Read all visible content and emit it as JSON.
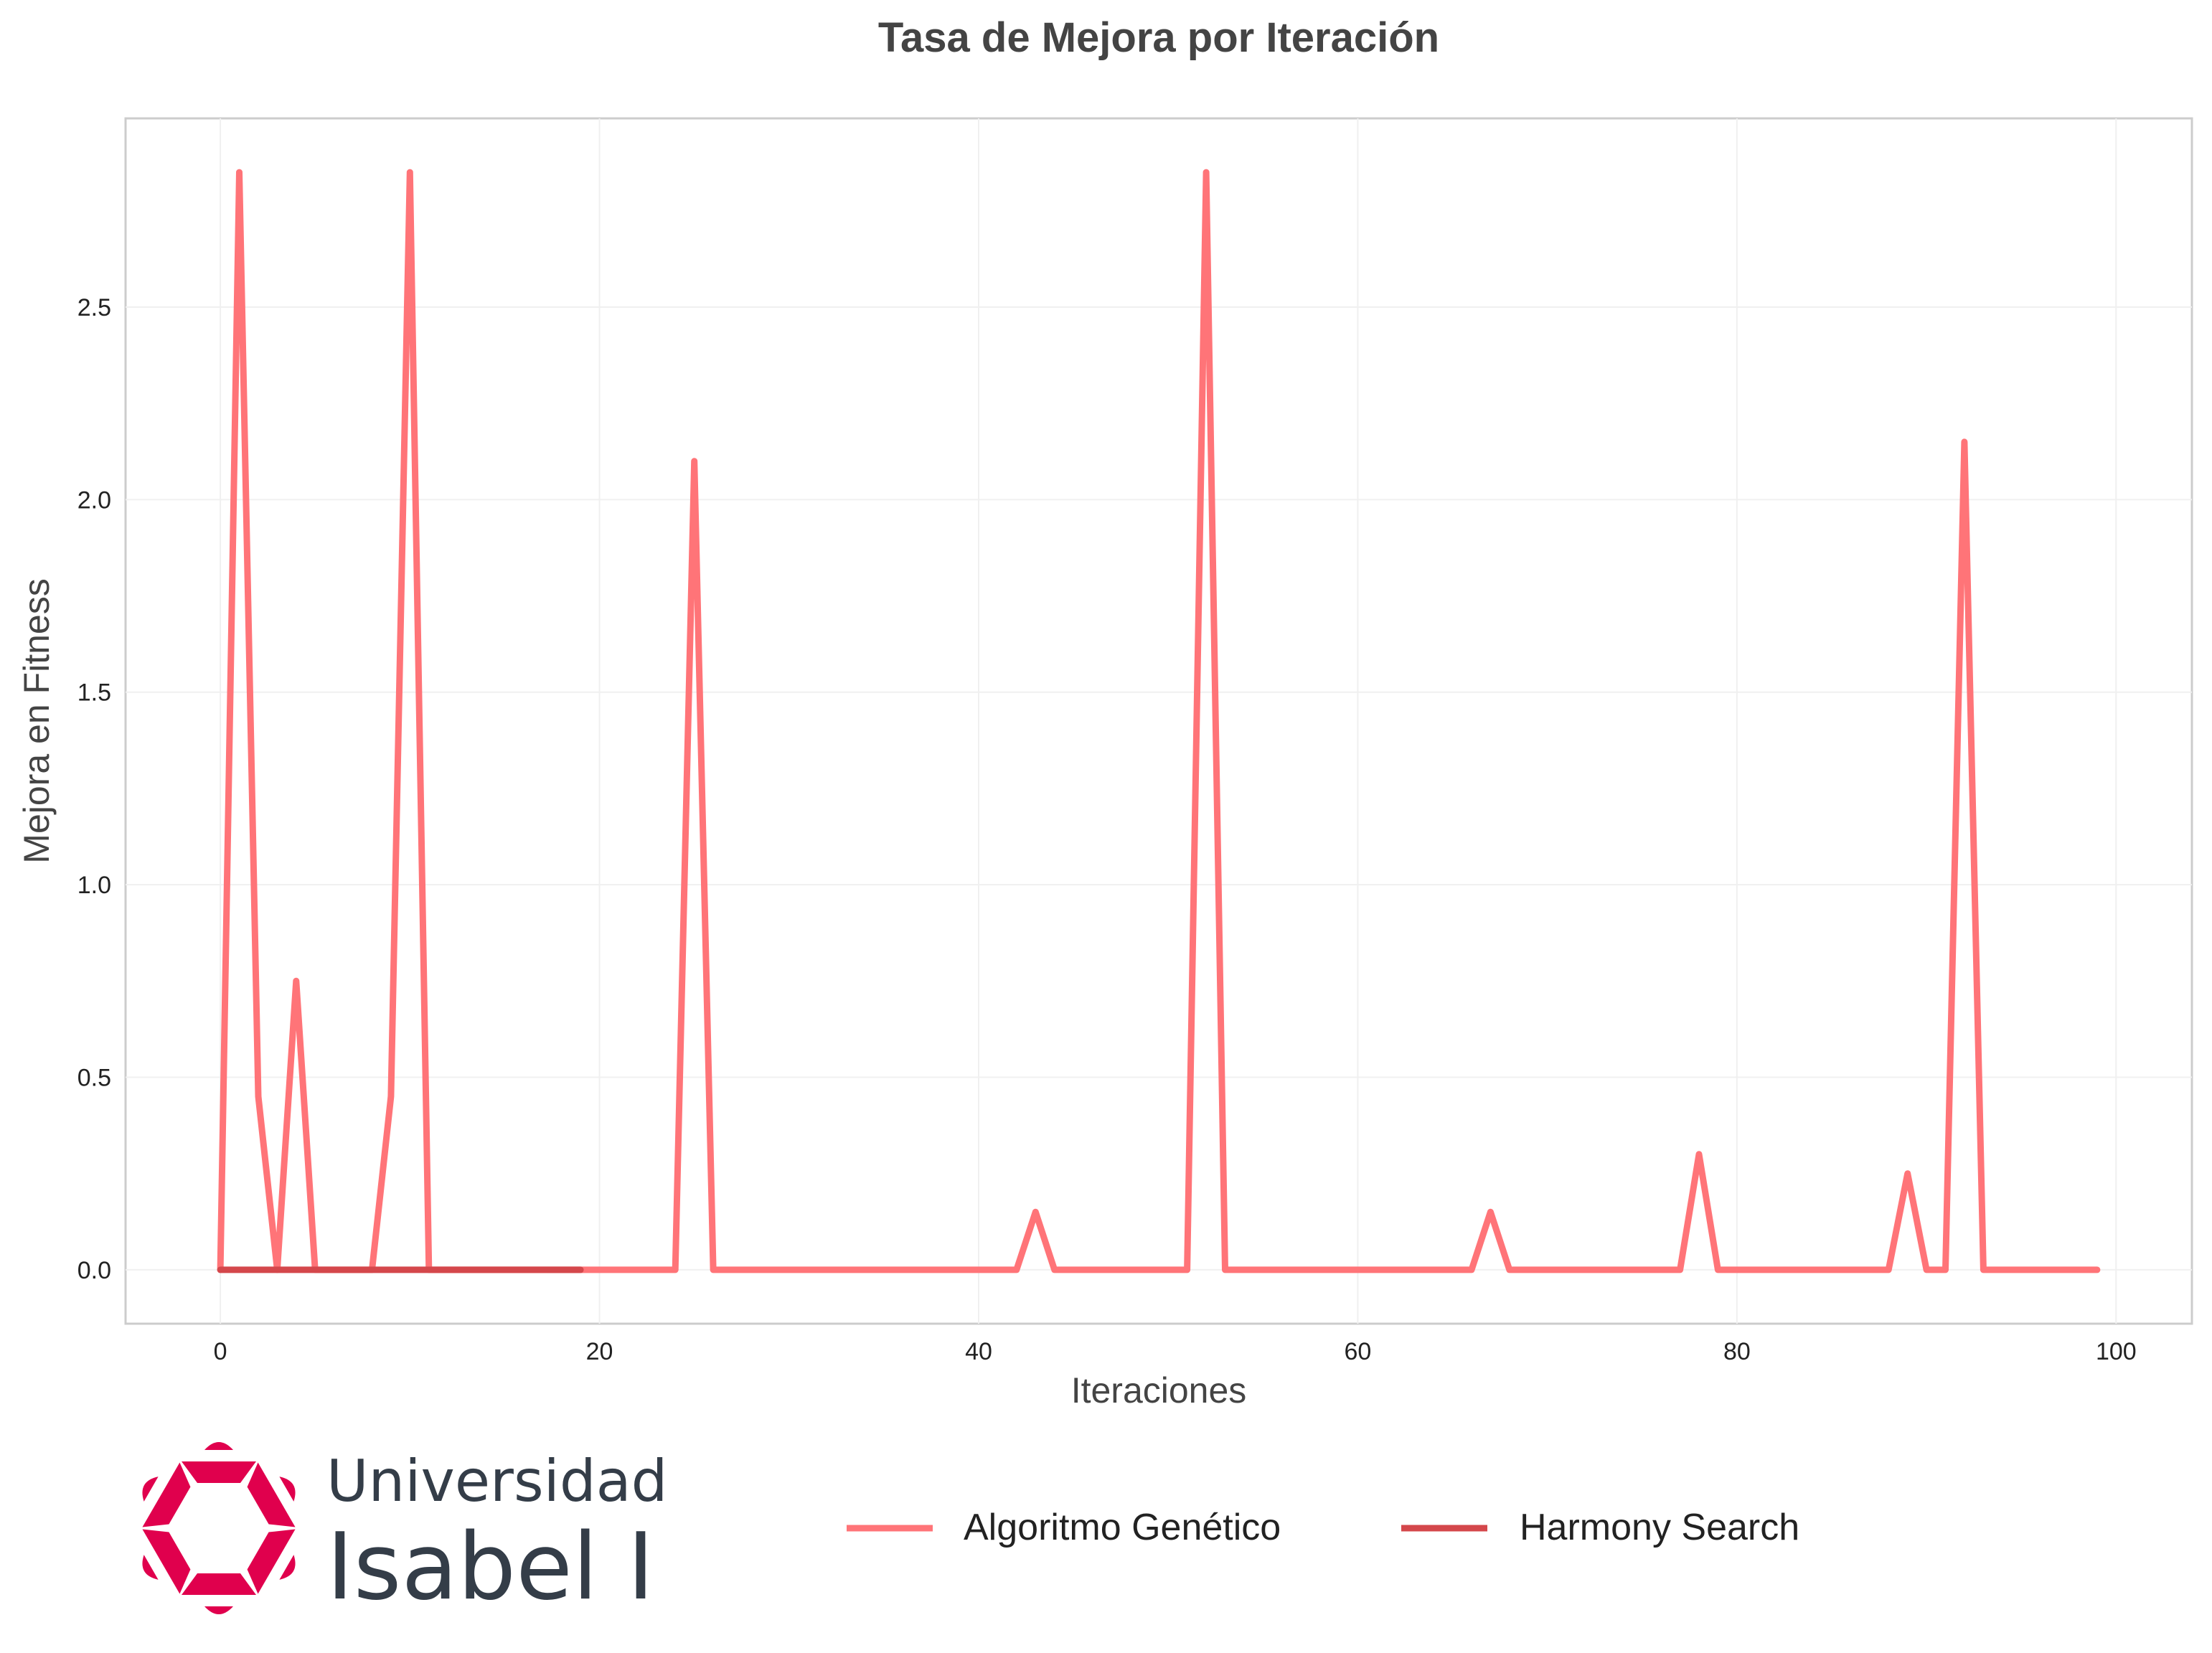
{
  "chart_data": {
    "type": "line",
    "title": "Tasa de Mejora por Iteración",
    "xlabel": "Iteraciones",
    "ylabel": "Mejora en Fitness",
    "xlim": [
      -5,
      104
    ],
    "ylim": [
      -0.14,
      2.99
    ],
    "xticks": [
      0,
      20,
      40,
      60,
      80,
      100
    ],
    "yticks": [
      0.0,
      0.5,
      1.0,
      1.5,
      2.0,
      2.5
    ],
    "grid": true,
    "legend_position": "bottom-center",
    "series": [
      {
        "name": "Algoritmo Genético",
        "color": "#ff7478",
        "x": [
          0,
          1,
          2,
          3,
          4,
          5,
          6,
          7,
          8,
          9,
          10,
          11,
          12,
          13,
          14,
          15,
          16,
          17,
          18,
          19,
          20,
          21,
          22,
          23,
          24,
          25,
          26,
          27,
          28,
          29,
          30,
          31,
          32,
          33,
          34,
          35,
          36,
          37,
          38,
          39,
          40,
          41,
          42,
          43,
          44,
          45,
          46,
          47,
          48,
          49,
          50,
          51,
          52,
          53,
          54,
          55,
          56,
          57,
          58,
          59,
          60,
          61,
          62,
          63,
          64,
          65,
          66,
          67,
          68,
          69,
          70,
          71,
          72,
          73,
          74,
          75,
          76,
          77,
          78,
          79,
          80,
          81,
          82,
          83,
          84,
          85,
          86,
          87,
          88,
          89,
          90,
          91,
          92,
          93,
          94,
          95,
          96,
          97,
          98,
          99
        ],
        "y": [
          0,
          2.85,
          0.45,
          0,
          0.75,
          0,
          0,
          0,
          0,
          0.45,
          2.85,
          0,
          0,
          0,
          0,
          0,
          0,
          0,
          0,
          0,
          0,
          0,
          0,
          0,
          0,
          2.1,
          0,
          0,
          0,
          0,
          0,
          0,
          0,
          0,
          0,
          0,
          0,
          0,
          0,
          0,
          0,
          0,
          0,
          0.15,
          0,
          0,
          0,
          0,
          0,
          0,
          0,
          0,
          2.85,
          0,
          0,
          0,
          0,
          0,
          0,
          0,
          0,
          0,
          0,
          0,
          0,
          0,
          0,
          0.15,
          0,
          0,
          0,
          0,
          0,
          0,
          0,
          0,
          0,
          0,
          0.3,
          0,
          0,
          0,
          0,
          0,
          0,
          0,
          0,
          0,
          0,
          0.25,
          0,
          0,
          2.15,
          0,
          0,
          0,
          0,
          0,
          0,
          0
        ]
      },
      {
        "name": "Harmony Search",
        "color": "#d4474b",
        "x": [
          0,
          1,
          2,
          3,
          4,
          5,
          6,
          7,
          8,
          9,
          10,
          11,
          12,
          13,
          14,
          15,
          16,
          17,
          18,
          19
        ],
        "y": [
          0,
          0,
          0,
          0,
          0,
          0,
          0,
          0,
          0,
          0,
          0,
          0,
          0,
          0,
          0,
          0,
          0,
          0,
          0,
          0
        ]
      }
    ]
  },
  "logo": {
    "line1": "Universidad",
    "line2": "Isabel I",
    "color": "#e0004d"
  }
}
